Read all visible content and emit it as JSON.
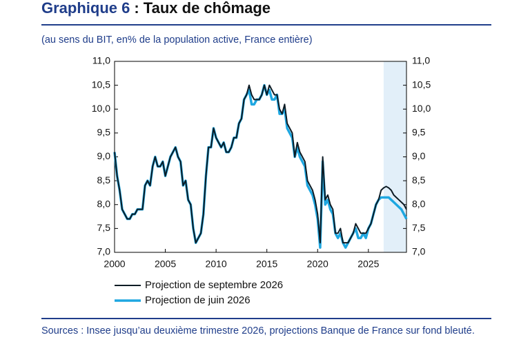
{
  "chart_data": {
    "type": "line",
    "figure_label": "Graphique 6",
    "title": ": Taux de chômage",
    "subtitle": "(au sens du BIT, en% de la population active, France entière)",
    "source": "Sources : Insee jusqu’au deuxième trimestre 2026, projections Banque de France sur fond bleuté.",
    "x": [
      2000,
      2000.25,
      2000.5,
      2000.75,
      2001,
      2001.25,
      2001.5,
      2001.75,
      2002,
      2002.25,
      2002.5,
      2002.75,
      2003,
      2003.25,
      2003.5,
      2003.75,
      2004,
      2004.25,
      2004.5,
      2004.75,
      2005,
      2005.25,
      2005.5,
      2005.75,
      2006,
      2006.25,
      2006.5,
      2006.75,
      2007,
      2007.25,
      2007.5,
      2007.75,
      2008,
      2008.25,
      2008.5,
      2008.75,
      2009,
      2009.25,
      2009.5,
      2009.75,
      2010,
      2010.25,
      2010.5,
      2010.75,
      2011,
      2011.25,
      2011.5,
      2011.75,
      2012,
      2012.25,
      2012.5,
      2012.75,
      2013,
      2013.25,
      2013.5,
      2013.75,
      2014,
      2014.25,
      2014.5,
      2014.75,
      2015,
      2015.25,
      2015.5,
      2015.75,
      2016,
      2016.25,
      2016.5,
      2016.75,
      2017,
      2017.25,
      2017.5,
      2017.75,
      2018,
      2018.25,
      2018.5,
      2018.75,
      2019,
      2019.25,
      2019.5,
      2019.75,
      2020,
      2020.25,
      2020.5,
      2020.75,
      2021,
      2021.25,
      2021.5,
      2021.75,
      2022,
      2022.25,
      2022.5,
      2022.75,
      2023,
      2023.25,
      2023.5,
      2023.75,
      2024,
      2024.25,
      2024.5,
      2024.75,
      2025,
      2025.25,
      2025.5,
      2025.75,
      2026,
      2026.25,
      2026.5,
      2026.75,
      2027,
      2027.25,
      2027.5,
      2027.75,
      2028,
      2028.25,
      2028.5,
      2028.75
    ],
    "series": [
      {
        "name": "Projection de juin 2026",
        "color": "#1ea7e1",
        "width": 3.5,
        "values": [
          9.1,
          8.6,
          8.3,
          7.9,
          7.8,
          7.7,
          7.7,
          7.8,
          7.8,
          7.9,
          7.9,
          7.9,
          8.4,
          8.5,
          8.4,
          8.8,
          9.0,
          8.8,
          8.8,
          8.9,
          8.6,
          8.8,
          9.0,
          9.1,
          9.2,
          9.0,
          8.9,
          8.4,
          8.5,
          8.1,
          8.0,
          7.5,
          7.2,
          7.3,
          7.4,
          7.8,
          8.6,
          9.2,
          9.2,
          9.6,
          9.4,
          9.3,
          9.2,
          9.3,
          9.1,
          9.1,
          9.2,
          9.4,
          9.4,
          9.7,
          9.8,
          10.2,
          10.3,
          10.4,
          10.1,
          10.1,
          10.2,
          10.2,
          10.3,
          10.5,
          10.3,
          10.4,
          10.2,
          10.2,
          10.3,
          9.9,
          9.9,
          10.0,
          9.6,
          9.5,
          9.4,
          9.0,
          9.2,
          9.0,
          8.9,
          8.8,
          8.4,
          8.3,
          8.2,
          8.0,
          7.7,
          7.1,
          8.9,
          8.0,
          8.1,
          7.9,
          7.8,
          7.4,
          7.3,
          7.4,
          7.2,
          7.1,
          7.2,
          7.3,
          7.4,
          7.5,
          7.3,
          7.3,
          7.4,
          7.3,
          7.5,
          7.6,
          7.8,
          8.0,
          8.1,
          8.15,
          8.15,
          8.15,
          8.15,
          8.1,
          8.05,
          8.0,
          7.95,
          7.9,
          7.8,
          7.7
        ]
      },
      {
        "name": "Projection de septembre 2026",
        "color": "#0d1b24",
        "width": 2,
        "values": [
          9.1,
          8.6,
          8.3,
          7.9,
          7.8,
          7.7,
          7.7,
          7.8,
          7.8,
          7.9,
          7.9,
          7.9,
          8.4,
          8.5,
          8.4,
          8.8,
          9.0,
          8.8,
          8.8,
          8.9,
          8.6,
          8.8,
          9.0,
          9.1,
          9.2,
          9.0,
          8.9,
          8.4,
          8.5,
          8.1,
          8.0,
          7.5,
          7.2,
          7.3,
          7.4,
          7.8,
          8.6,
          9.2,
          9.2,
          9.6,
          9.4,
          9.3,
          9.2,
          9.3,
          9.1,
          9.1,
          9.2,
          9.4,
          9.4,
          9.7,
          9.8,
          10.2,
          10.3,
          10.5,
          10.3,
          10.2,
          10.2,
          10.2,
          10.3,
          10.5,
          10.3,
          10.5,
          10.4,
          10.3,
          10.3,
          10.0,
          9.9,
          10.1,
          9.7,
          9.6,
          9.5,
          9.0,
          9.3,
          9.1,
          9.0,
          8.9,
          8.5,
          8.4,
          8.3,
          8.1,
          7.8,
          7.2,
          9.0,
          8.1,
          8.2,
          8.0,
          7.9,
          7.4,
          7.4,
          7.5,
          7.2,
          7.2,
          7.2,
          7.3,
          7.4,
          7.6,
          7.5,
          7.4,
          7.4,
          7.4,
          7.5,
          7.6,
          7.8,
          8.0,
          8.1,
          8.3,
          8.35,
          8.38,
          8.35,
          8.3,
          8.2,
          8.15,
          8.1,
          8.05,
          8.0,
          7.9
        ]
      }
    ],
    "legend_order": [
      1,
      0
    ],
    "shaded_xlim": [
      2026.5,
      2028.75
    ],
    "shade_color": "#e2eff9",
    "xlim": [
      2000,
      2028.75
    ],
    "xticks": [
      2000,
      2005,
      2010,
      2015,
      2020,
      2025
    ],
    "ylim": [
      7,
      11
    ],
    "yticks": [
      {
        "value": 7,
        "label": "7,0"
      },
      {
        "value": 7.5,
        "label": "7,5"
      },
      {
        "value": 8,
        "label": "8,0"
      },
      {
        "value": 8.5,
        "label": "8,5"
      },
      {
        "value": 9,
        "label": "9,0"
      },
      {
        "value": 9.5,
        "label": "9,5"
      },
      {
        "value": 10,
        "label": "10,0"
      },
      {
        "value": 10.5,
        "label": "10,5"
      },
      {
        "value": 11,
        "label": "11,0"
      }
    ]
  }
}
